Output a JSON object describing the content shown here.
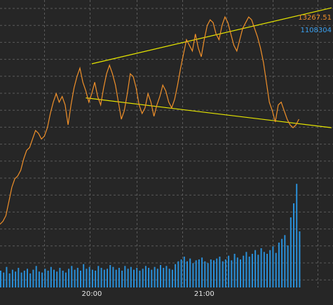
{
  "chart_data": {
    "type": "line",
    "title": "",
    "x_tick_labels": [
      "20:00",
      "21:00"
    ],
    "price_label": "13267.51",
    "volume_label": "1108304",
    "colors": {
      "background": "#262626",
      "grid": "#5a5a5a",
      "price": "#f0902a",
      "volume": "#2a8fd8",
      "trendline": "#e6e600",
      "price_label": "#f0902a",
      "volume_label": "#3aa0f0"
    },
    "grid": true,
    "price_ylim": [
      12480,
      13300
    ],
    "volume_ylim": [
      0,
      1200000
    ],
    "time_range_min": [
      0,
      112.5
    ],
    "x_tick_minutes": [
      31,
      69
    ],
    "price_series": {
      "name": "",
      "x": [
        0,
        1,
        2,
        3,
        4,
        5,
        6,
        7,
        8,
        9,
        10,
        11,
        12,
        13,
        14,
        15,
        16,
        17,
        18,
        19,
        20,
        21,
        22,
        23,
        24,
        25,
        26,
        27,
        28,
        29,
        30,
        31,
        32,
        33,
        34,
        35,
        36,
        37,
        38,
        39,
        40,
        41,
        42,
        43,
        44,
        45,
        46,
        47,
        48,
        49,
        50,
        51,
        52,
        53,
        54,
        55,
        56,
        57,
        58,
        59,
        60,
        61,
        62,
        63,
        64,
        65,
        66,
        67,
        68,
        69,
        70,
        71,
        72,
        73,
        74,
        75,
        76,
        77,
        78,
        79,
        80,
        81,
        82,
        83,
        84,
        85,
        86,
        87,
        88,
        89,
        90,
        91,
        92,
        93,
        94,
        95,
        96,
        97,
        98,
        99,
        100,
        101
      ],
      "values": [
        12530,
        12540,
        12560,
        12610,
        12660,
        12690,
        12700,
        12720,
        12760,
        12790,
        12800,
        12830,
        12860,
        12850,
        12830,
        12840,
        12870,
        12920,
        12960,
        12990,
        12960,
        12980,
        12950,
        12880,
        12950,
        13010,
        13050,
        13080,
        13030,
        13000,
        12960,
        12990,
        13030,
        12980,
        12950,
        13010,
        13060,
        13090,
        13060,
        13020,
        12960,
        12900,
        12930,
        12990,
        13060,
        13050,
        13010,
        12950,
        12920,
        12940,
        12990,
        12960,
        12910,
        12950,
        12980,
        13020,
        13000,
        12960,
        12940,
        12970,
        13020,
        13080,
        13130,
        13180,
        13160,
        13140,
        13200,
        13150,
        13120,
        13180,
        13230,
        13250,
        13240,
        13200,
        13180,
        13230,
        13260,
        13240,
        13200,
        13160,
        13140,
        13180,
        13220,
        13240,
        13260,
        13250,
        13220,
        13190,
        13150,
        13100,
        13030,
        12960,
        12930,
        12890,
        12950,
        12960,
        12930,
        12900,
        12880,
        12870,
        12880,
        12900
      ]
    },
    "volume_series": {
      "name": "",
      "values": [
        180000,
        160000,
        220000,
        150000,
        190000,
        170000,
        210000,
        160000,
        180000,
        200000,
        150000,
        190000,
        230000,
        170000,
        160000,
        200000,
        180000,
        220000,
        190000,
        170000,
        210000,
        180000,
        160000,
        200000,
        230000,
        190000,
        210000,
        180000,
        250000,
        200000,
        220000,
        190000,
        180000,
        230000,
        210000,
        190000,
        200000,
        240000,
        220000,
        190000,
        210000,
        180000,
        230000,
        200000,
        220000,
        190000,
        210000,
        180000,
        200000,
        230000,
        210000,
        190000,
        220000,
        200000,
        240000,
        210000,
        230000,
        200000,
        190000,
        250000,
        280000,
        300000,
        330000,
        280000,
        310000,
        260000,
        290000,
        300000,
        320000,
        280000,
        260000,
        300000,
        290000,
        310000,
        330000,
        280000,
        300000,
        340000,
        290000,
        360000,
        320000,
        300000,
        340000,
        380000,
        330000,
        360000,
        400000,
        350000,
        420000,
        380000,
        360000,
        400000,
        440000,
        370000,
        480000,
        520000,
        560000,
        450000,
        750000,
        900000,
        1108304,
        600000
      ]
    },
    "trendlines": [
      {
        "x": [
          31,
          112
        ],
        "values": [
          13095,
          13292
        ]
      },
      {
        "x": [
          29,
          112
        ],
        "values": [
          12975,
          12870
        ]
      }
    ]
  }
}
